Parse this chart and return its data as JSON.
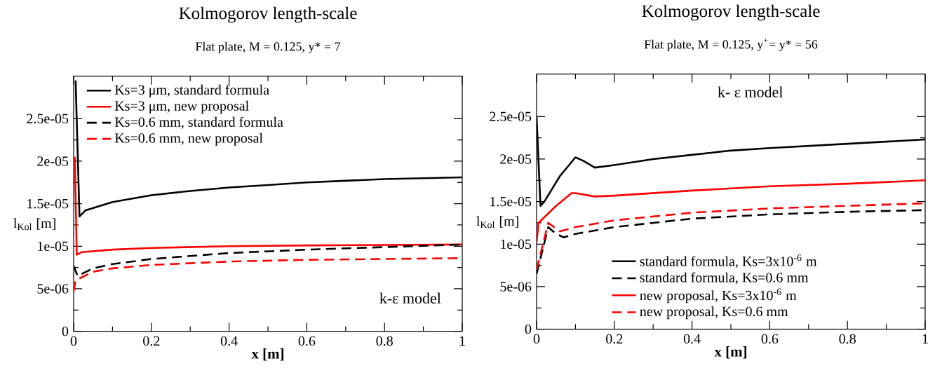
{
  "chart_data": [
    {
      "type": "line",
      "title": "Kolmogorov length-scale",
      "subtitle": "Flat plate,  M = 0.125,  y* = 7",
      "xlabel": "x [m]",
      "ylabel": "l$_{Kol}$ [m]",
      "annotations": [
        "k-ε model"
      ],
      "xlim": [
        0,
        1
      ],
      "xticks": [
        0,
        0.2,
        0.4,
        0.6,
        0.8,
        1
      ],
      "ylim": [
        0,
        3e-05
      ],
      "yticks": [
        {
          "value": 0,
          "label": "0"
        },
        {
          "value": 5e-06,
          "label": "5e-06"
        },
        {
          "value": 1e-05,
          "label": "1e-05"
        },
        {
          "value": 1.5e-05,
          "label": "1.5e-05"
        },
        {
          "value": 2e-05,
          "label": "2e-05"
        },
        {
          "value": 2.5e-05,
          "label": "2.5e-05"
        }
      ],
      "legend": "top left",
      "series": [
        {
          "name": "Ks=3 μm, standard formula",
          "color": "#000000",
          "line_style": "solid",
          "x": [
            0.005,
            0.015,
            0.03,
            0.1,
            0.2,
            0.3,
            0.4,
            0.5,
            0.6,
            0.7,
            0.8,
            0.9,
            1
          ],
          "values": [
            2.95e-05,
            1.35e-05,
            1.42e-05,
            1.52e-05,
            1.6e-05,
            1.65e-05,
            1.69e-05,
            1.72e-05,
            1.75e-05,
            1.77e-05,
            1.79e-05,
            1.8e-05,
            1.81e-05
          ]
        },
        {
          "name": "Ks=3 μm, new proposal",
          "color": "#ff0000",
          "line_style": "solid",
          "x": [
            0.003,
            0.008,
            0.02,
            0.1,
            0.2,
            0.4,
            0.6,
            1
          ],
          "values": [
            2.05e-05,
            9e-06,
            9.3e-06,
            9.6e-06,
            9.8e-06,
            1e-05,
            1.01e-05,
            1.02e-05
          ]
        },
        {
          "name": "Ks=0.6 mm, standard formula",
          "color": "#000000",
          "line_style": "dashed",
          "x": [
            0,
            0.01,
            0.05,
            0.1,
            0.2,
            0.4,
            0.6,
            0.8,
            1
          ],
          "values": [
            7.7e-06,
            6.5e-06,
            7.4e-06,
            7.9e-06,
            8.5e-06,
            9.2e-06,
            9.6e-06,
            9.9e-06,
            1.02e-05
          ]
        },
        {
          "name": "Ks=0.6 mm, new proposal",
          "color": "#ff0000",
          "line_style": "dashed",
          "x": [
            0,
            0.005,
            0.05,
            0.1,
            0.2,
            0.4,
            0.6,
            0.8,
            1
          ],
          "values": [
            4.7e-06,
            6e-06,
            7e-06,
            7.4e-06,
            7.8e-06,
            8.2e-06,
            8.4e-06,
            8.5e-06,
            8.6e-06
          ]
        }
      ]
    },
    {
      "type": "line",
      "title": "Kolmogorov length-scale",
      "subtitle": "Flat plate,  M = 0.125,  y$^{+}$= y* = 56",
      "xlabel": "x [m]",
      "ylabel": "l$_{Kol}$ [m]",
      "annotations": [
        "k- ε model"
      ],
      "xlim": [
        0,
        1
      ],
      "xticks": [
        0,
        0.2,
        0.4,
        0.6,
        0.8,
        1
      ],
      "ylim": [
        0,
        3e-05
      ],
      "yticks": [
        {
          "value": 0,
          "label": "0"
        },
        {
          "value": 5e-06,
          "label": "5e-06"
        },
        {
          "value": 1e-05,
          "label": "1e-05"
        },
        {
          "value": 1.5e-05,
          "label": "1.5e-05"
        },
        {
          "value": 2e-05,
          "label": "2e-05"
        },
        {
          "value": 2.5e-05,
          "label": "2.5e-05"
        }
      ],
      "legend": "bottom",
      "series": [
        {
          "name": "standard formula, Ks=3x10$^{-6}$ m",
          "color": "#000000",
          "line_style": "solid",
          "x": [
            0,
            0.01,
            0.02,
            0.06,
            0.1,
            0.12,
            0.15,
            0.2,
            0.3,
            0.4,
            0.5,
            0.6,
            0.8,
            1
          ],
          "values": [
            2.5e-05,
            1.45e-05,
            1.5e-05,
            1.8e-05,
            2.02e-05,
            1.98e-05,
            1.9e-05,
            1.93e-05,
            2e-05,
            2.05e-05,
            2.1e-05,
            2.13e-05,
            2.18e-05,
            2.23e-05
          ]
        },
        {
          "name": "standard formula, Ks=0.6 mm",
          "color": "#000000",
          "line_style": "dashed",
          "x": [
            0,
            0.03,
            0.05,
            0.07,
            0.1,
            0.2,
            0.4,
            0.6,
            0.8,
            1
          ],
          "values": [
            6.5e-06,
            1.2e-05,
            1.12e-05,
            1.08e-05,
            1.12e-05,
            1.2e-05,
            1.3e-05,
            1.35e-05,
            1.38e-05,
            1.4e-05
          ]
        },
        {
          "name": "new proposal, Ks=3x10$^{-6}$ m",
          "color": "#ff0000",
          "line_style": "solid",
          "x": [
            0,
            0.005,
            0.05,
            0.09,
            0.1,
            0.15,
            0.2,
            0.4,
            0.6,
            0.8,
            1
          ],
          "values": [
            1.02e-05,
            1.25e-05,
            1.45e-05,
            1.6e-05,
            1.6e-05,
            1.56e-05,
            1.57e-05,
            1.63e-05,
            1.68e-05,
            1.71e-05,
            1.75e-05
          ]
        },
        {
          "name": "new proposal, Ks=0.6 mm",
          "color": "#ff0000",
          "line_style": "dashed",
          "x": [
            0,
            0.03,
            0.06,
            0.1,
            0.2,
            0.4,
            0.6,
            0.8,
            1
          ],
          "values": [
            7e-06,
            1.25e-05,
            1.15e-05,
            1.2e-05,
            1.28e-05,
            1.37e-05,
            1.42e-05,
            1.45e-05,
            1.48e-05
          ]
        }
      ]
    }
  ]
}
